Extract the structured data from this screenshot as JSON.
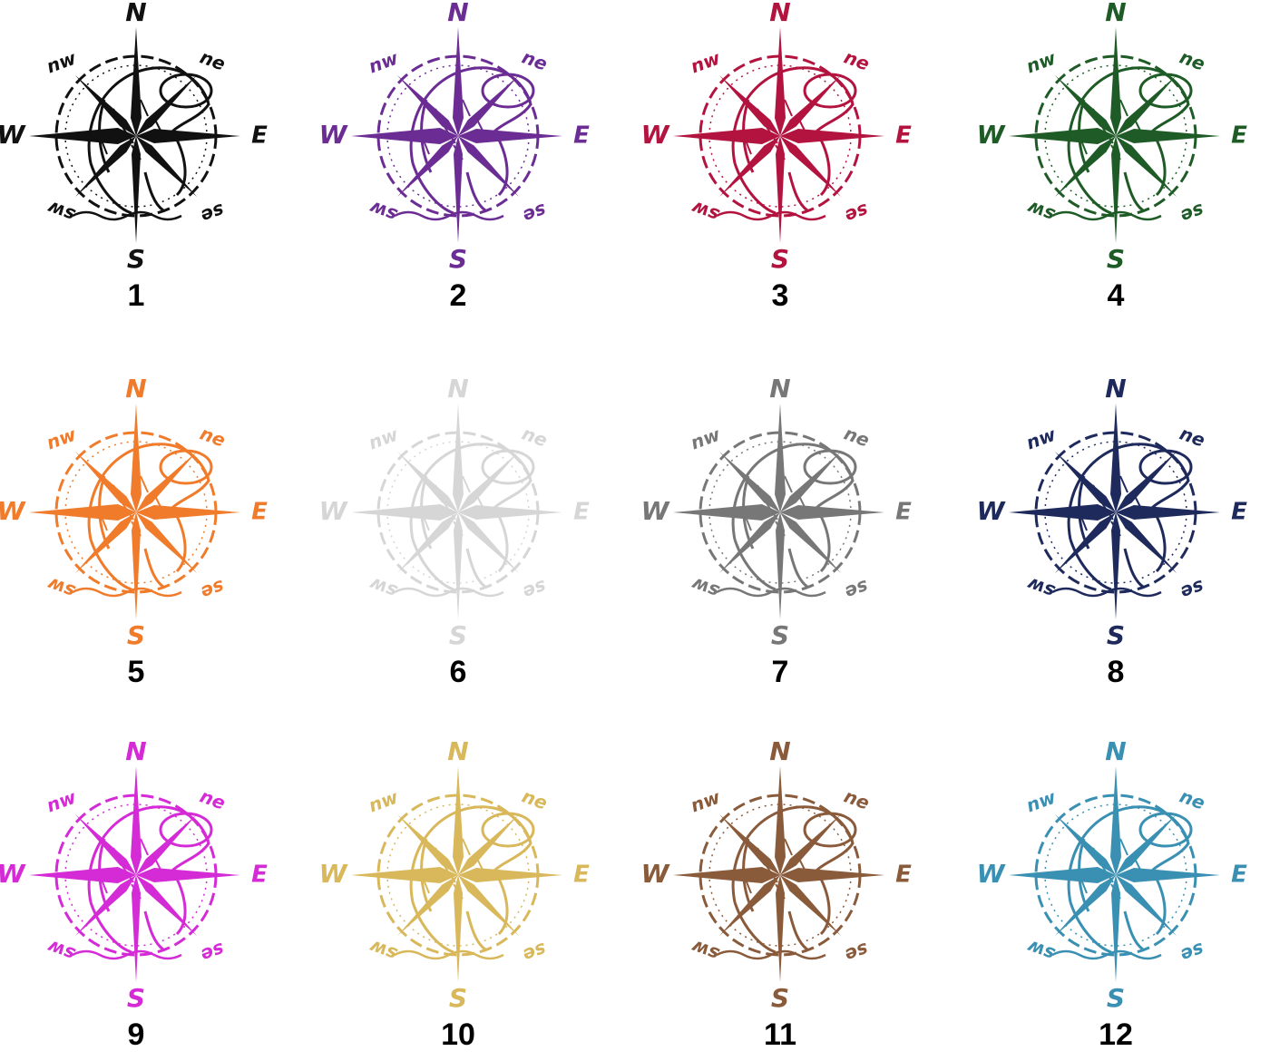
{
  "compass_labels": {
    "n": "N",
    "ne": "ne",
    "e": "E",
    "se": "se",
    "s": "S",
    "sw": "sw",
    "w": "W",
    "nw": "nw"
  },
  "items": [
    {
      "number": "1",
      "color": "#111111"
    },
    {
      "number": "2",
      "color": "#6b2d94"
    },
    {
      "number": "3",
      "color": "#b3133f"
    },
    {
      "number": "4",
      "color": "#1f5b27"
    },
    {
      "number": "5",
      "color": "#f07b2b"
    },
    {
      "number": "6",
      "color": "#d6d6d6"
    },
    {
      "number": "7",
      "color": "#777777"
    },
    {
      "number": "8",
      "color": "#1f2a5c"
    },
    {
      "number": "9",
      "color": "#d42bd6"
    },
    {
      "number": "10",
      "color": "#d8b85a"
    },
    {
      "number": "11",
      "color": "#8a5b3b"
    },
    {
      "number": "12",
      "color": "#3a90b2"
    }
  ]
}
